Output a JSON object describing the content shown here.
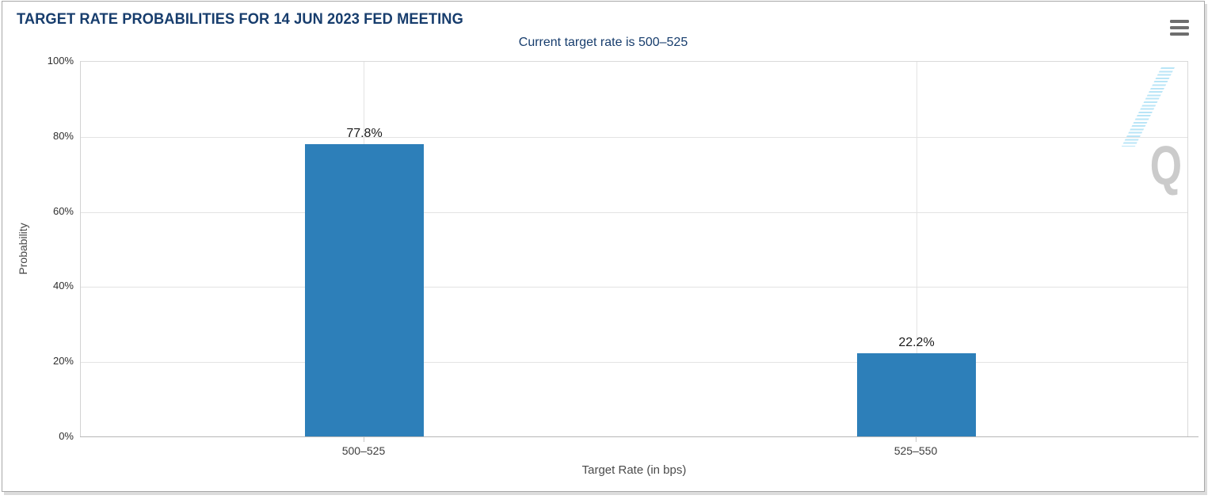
{
  "header": {
    "title": "TARGET RATE PROBABILITIES FOR 14 JUN 2023 FED MEETING",
    "subtitle": "Current target rate is 500–525"
  },
  "watermark": {
    "letter": "Q"
  },
  "chart_data": {
    "type": "bar",
    "title": "TARGET RATE PROBABILITIES FOR 14 JUN 2023 FED MEETING",
    "subtitle": "Current target rate is 500–525",
    "categories": [
      "500–525",
      "525–550"
    ],
    "values": [
      77.8,
      22.2
    ],
    "value_labels": [
      "77.8%",
      "22.2%"
    ],
    "xlabel": "Target Rate (in bps)",
    "ylabel": "Probability",
    "ylim": [
      0,
      100
    ],
    "yticks": [
      "0%",
      "20%",
      "40%",
      "60%",
      "80%",
      "100%"
    ],
    "grid": true,
    "legend": "none",
    "bar_color": "#2d7fb9",
    "title_color": "#173d6d"
  }
}
